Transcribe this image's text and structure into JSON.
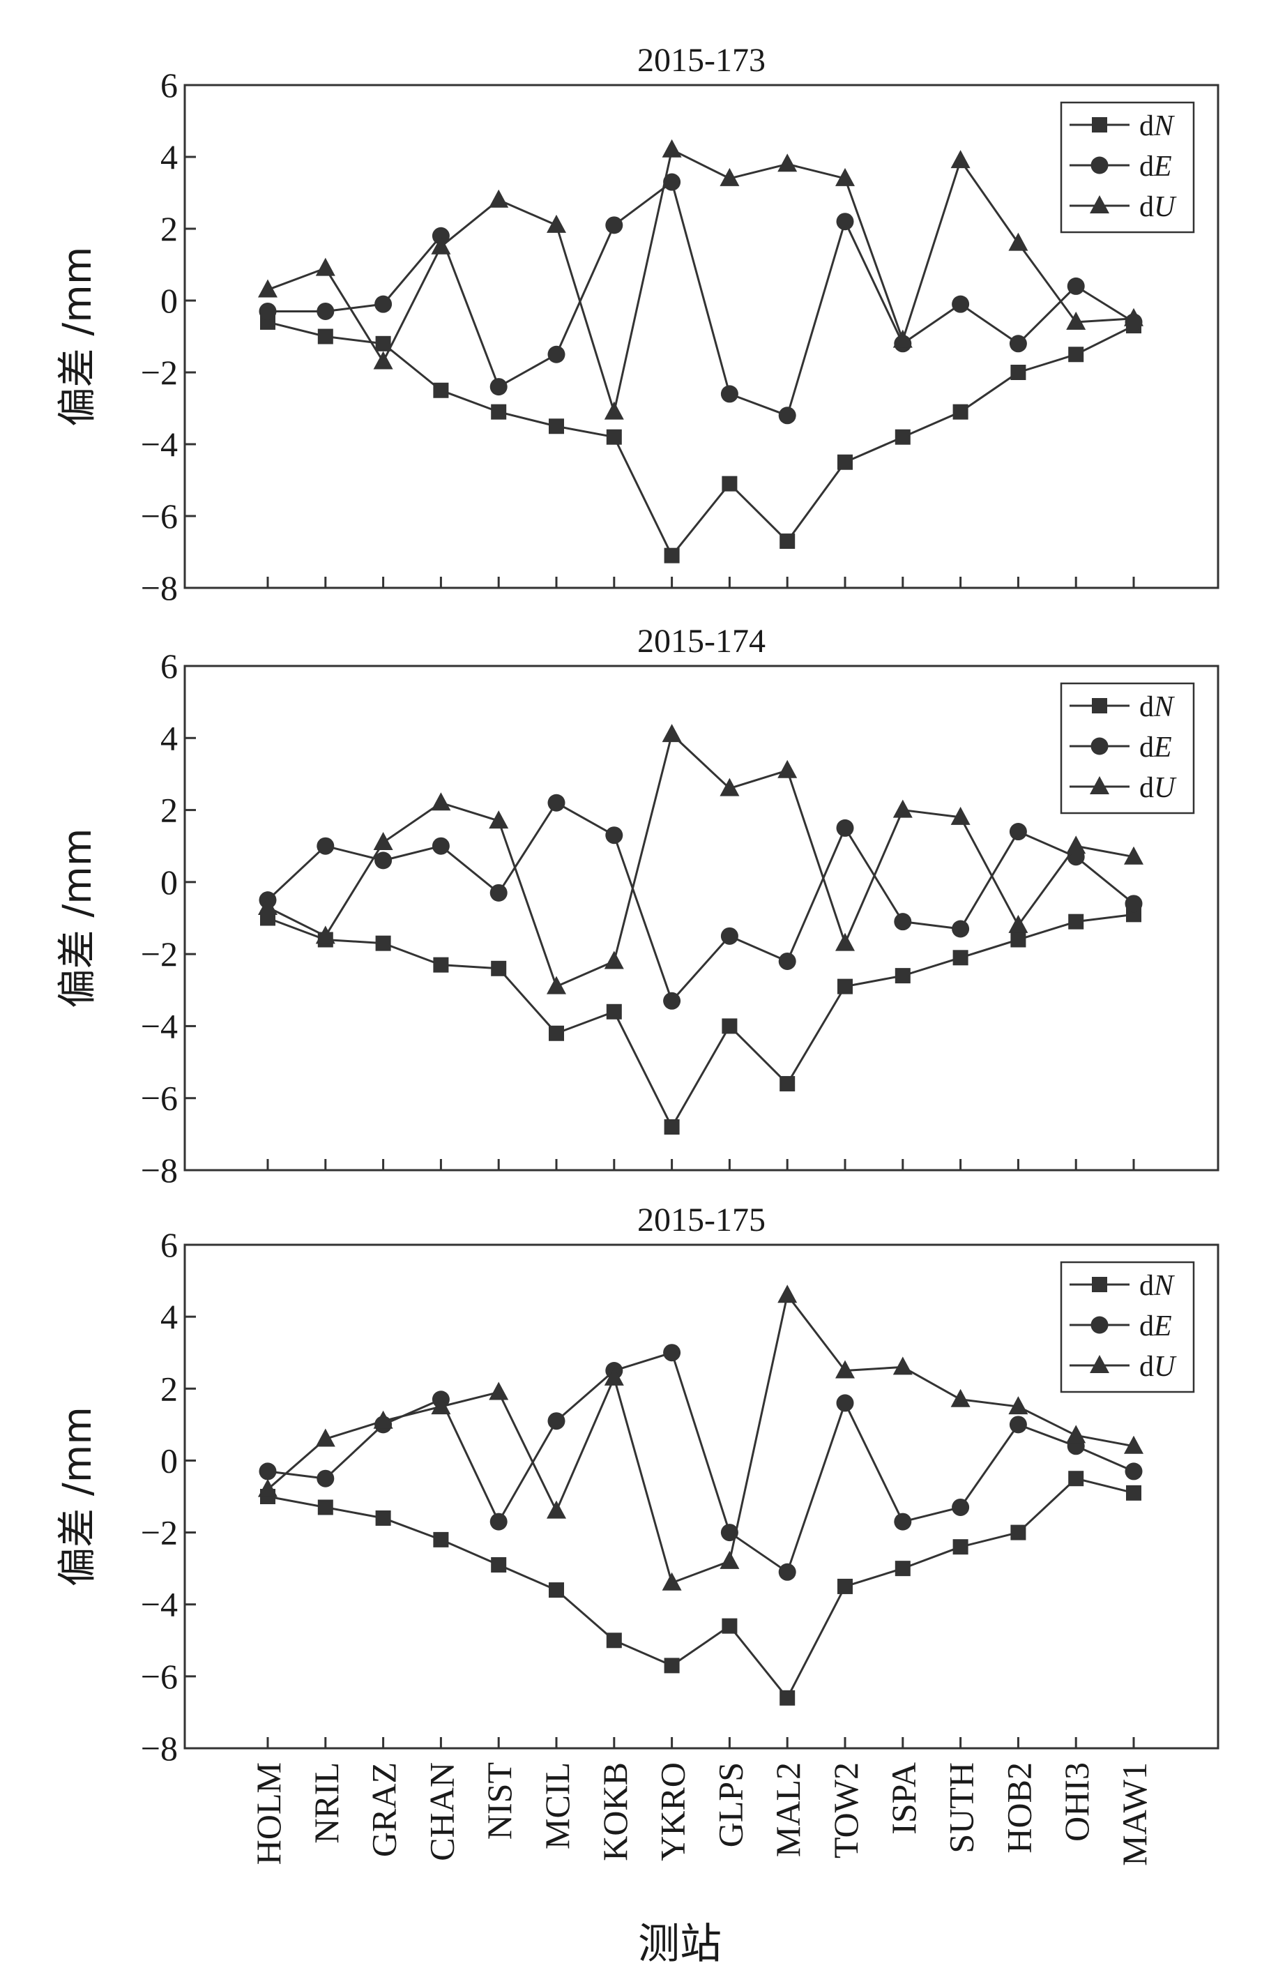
{
  "figure": {
    "xlabel": "测站",
    "stations": [
      "HOLM",
      "NRIL",
      "GRAZ",
      "CHAN",
      "NIST",
      "MCIL",
      "KOKB",
      "YKRO",
      "GLPS",
      "MAL2",
      "TOW2",
      "ISPA",
      "SUTH",
      "HOB2",
      "OHI3",
      "MAW1"
    ]
  },
  "chart_data": [
    {
      "type": "line",
      "title": "2015-173",
      "ylabel": "偏差 /mm",
      "ylim": [
        -8,
        6
      ],
      "yticks": [
        -8,
        -6,
        -4,
        -2,
        0,
        2,
        4,
        6
      ],
      "categories": [
        "HOLM",
        "NRIL",
        "GRAZ",
        "CHAN",
        "NIST",
        "MCIL",
        "KOKB",
        "YKRO",
        "GLPS",
        "MAL2",
        "TOW2",
        "ISPA",
        "SUTH",
        "HOB2",
        "OHI3",
        "MAW1"
      ],
      "legend_position": "top-right",
      "series": [
        {
          "name": "dN",
          "marker": "square",
          "values": [
            -0.6,
            -1.0,
            -1.2,
            -2.5,
            -3.1,
            -3.5,
            -3.8,
            -7.1,
            -5.1,
            -6.7,
            -4.5,
            -3.8,
            -3.1,
            -2.0,
            -1.5,
            -0.7
          ]
        },
        {
          "name": "dE",
          "marker": "circle",
          "values": [
            -0.3,
            -0.3,
            -0.1,
            1.8,
            -2.4,
            -1.5,
            2.1,
            3.3,
            -2.6,
            -3.2,
            2.2,
            -1.2,
            -0.1,
            -1.2,
            0.4,
            -0.6
          ]
        },
        {
          "name": "dU",
          "marker": "triangle",
          "values": [
            0.3,
            0.9,
            -1.7,
            1.5,
            2.8,
            2.1,
            -3.1,
            4.2,
            3.4,
            3.8,
            3.4,
            -1.1,
            3.9,
            1.6,
            -0.6,
            -0.5
          ]
        }
      ]
    },
    {
      "type": "line",
      "title": "2015-174",
      "ylabel": "偏差 /mm",
      "ylim": [
        -8,
        6
      ],
      "yticks": [
        -8,
        -6,
        -4,
        -2,
        0,
        2,
        4,
        6
      ],
      "categories": [
        "HOLM",
        "NRIL",
        "GRAZ",
        "CHAN",
        "NIST",
        "MCIL",
        "KOKB",
        "YKRO",
        "GLPS",
        "MAL2",
        "TOW2",
        "ISPA",
        "SUTH",
        "HOB2",
        "OHI3",
        "MAW1"
      ],
      "legend_position": "top-right",
      "series": [
        {
          "name": "dN",
          "marker": "square",
          "values": [
            -1.0,
            -1.6,
            -1.7,
            -2.3,
            -2.4,
            -4.2,
            -3.6,
            -6.8,
            -4.0,
            -5.6,
            -2.9,
            -2.6,
            -2.1,
            -1.6,
            -1.1,
            -0.9
          ]
        },
        {
          "name": "dE",
          "marker": "circle",
          "values": [
            -0.5,
            1.0,
            0.6,
            1.0,
            -0.3,
            2.2,
            1.3,
            -3.3,
            -1.5,
            -2.2,
            1.5,
            -1.1,
            -1.3,
            1.4,
            0.7,
            -0.6
          ]
        },
        {
          "name": "dU",
          "marker": "triangle",
          "values": [
            -0.7,
            -1.5,
            1.1,
            2.2,
            1.7,
            -2.9,
            -2.2,
            4.1,
            2.6,
            3.1,
            -1.7,
            2.0,
            1.8,
            -1.2,
            1.0,
            0.7
          ]
        }
      ]
    },
    {
      "type": "line",
      "title": "2015-175",
      "ylabel": "偏差 /mm",
      "ylim": [
        -8,
        6
      ],
      "yticks": [
        -8,
        -6,
        -4,
        -2,
        0,
        2,
        4,
        6
      ],
      "categories": [
        "HOLM",
        "NRIL",
        "GRAZ",
        "CHAN",
        "NIST",
        "MCIL",
        "KOKB",
        "YKRO",
        "GLPS",
        "MAL2",
        "TOW2",
        "ISPA",
        "SUTH",
        "HOB2",
        "OHI3",
        "MAW1"
      ],
      "legend_position": "top-right",
      "series": [
        {
          "name": "dN",
          "marker": "square",
          "values": [
            -1.0,
            -1.3,
            -1.6,
            -2.2,
            -2.9,
            -3.6,
            -5.0,
            -5.7,
            -4.6,
            -6.6,
            -3.5,
            -3.0,
            -2.4,
            -2.0,
            -0.5,
            -0.9
          ]
        },
        {
          "name": "dE",
          "marker": "circle",
          "values": [
            -0.3,
            -0.5,
            1.0,
            1.7,
            -1.7,
            1.1,
            2.5,
            3.0,
            -2.0,
            -3.1,
            1.6,
            -1.7,
            -1.3,
            1.0,
            0.4,
            -0.3
          ]
        },
        {
          "name": "dU",
          "marker": "triangle",
          "values": [
            -0.8,
            0.6,
            1.1,
            1.5,
            1.9,
            -1.4,
            2.3,
            -3.4,
            -2.8,
            4.6,
            2.5,
            2.6,
            1.7,
            1.5,
            0.7,
            0.4
          ]
        }
      ]
    }
  ]
}
